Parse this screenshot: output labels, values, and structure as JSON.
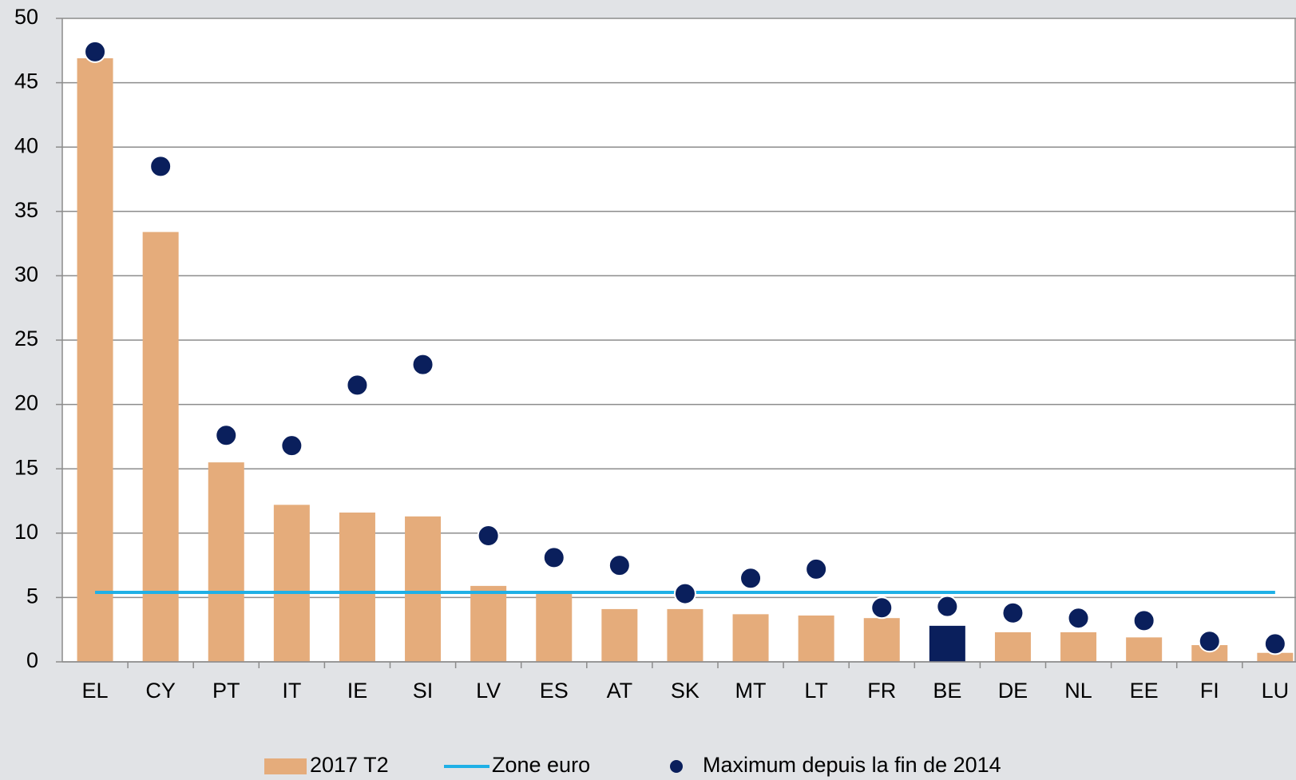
{
  "chart_data": {
    "type": "bar",
    "categories": [
      "EL",
      "CY",
      "PT",
      "IT",
      "IE",
      "SI",
      "LV",
      "ES",
      "AT",
      "SK",
      "MT",
      "LT",
      "FR",
      "BE",
      "DE",
      "NL",
      "EE",
      "FI",
      "LU"
    ],
    "series": [
      {
        "name": "2017 T2",
        "type": "bar",
        "color": "#e5ac7b",
        "colors": [
          "#e5ac7b",
          "#e5ac7b",
          "#e5ac7b",
          "#e5ac7b",
          "#e5ac7b",
          "#e5ac7b",
          "#e5ac7b",
          "#e5ac7b",
          "#e5ac7b",
          "#e5ac7b",
          "#e5ac7b",
          "#e5ac7b",
          "#e5ac7b",
          "#0a1f5c",
          "#e5ac7b",
          "#e5ac7b",
          "#e5ac7b",
          "#e5ac7b",
          "#e5ac7b"
        ],
        "values": [
          46.9,
          33.4,
          15.5,
          12.2,
          11.6,
          11.3,
          5.9,
          5.4,
          4.1,
          4.1,
          3.7,
          3.6,
          3.4,
          2.8,
          2.3,
          2.3,
          1.9,
          1.3,
          0.7
        ]
      },
      {
        "name": "Zone euro",
        "type": "line",
        "color": "#1fb0e6",
        "values": [
          5.4,
          5.4,
          5.4,
          5.4,
          5.4,
          5.4,
          5.4,
          5.4,
          5.4,
          5.4,
          5.4,
          5.4,
          5.4,
          5.4,
          5.4,
          5.4,
          5.4,
          5.4,
          5.4
        ]
      },
      {
        "name": "Maximum depuis la fin de 2014",
        "type": "scatter",
        "color": "#0a1f5c",
        "values": [
          47.4,
          38.5,
          17.6,
          16.8,
          21.5,
          23.1,
          9.8,
          8.1,
          7.5,
          5.3,
          6.5,
          7.2,
          4.2,
          4.3,
          3.8,
          3.4,
          3.2,
          1.6,
          1.4
        ]
      }
    ],
    "ylim": [
      0,
      50
    ],
    "yticks": [
      0,
      5,
      10,
      15,
      20,
      25,
      30,
      35,
      40,
      45,
      50
    ],
    "grid": true,
    "legend": "bottom"
  }
}
